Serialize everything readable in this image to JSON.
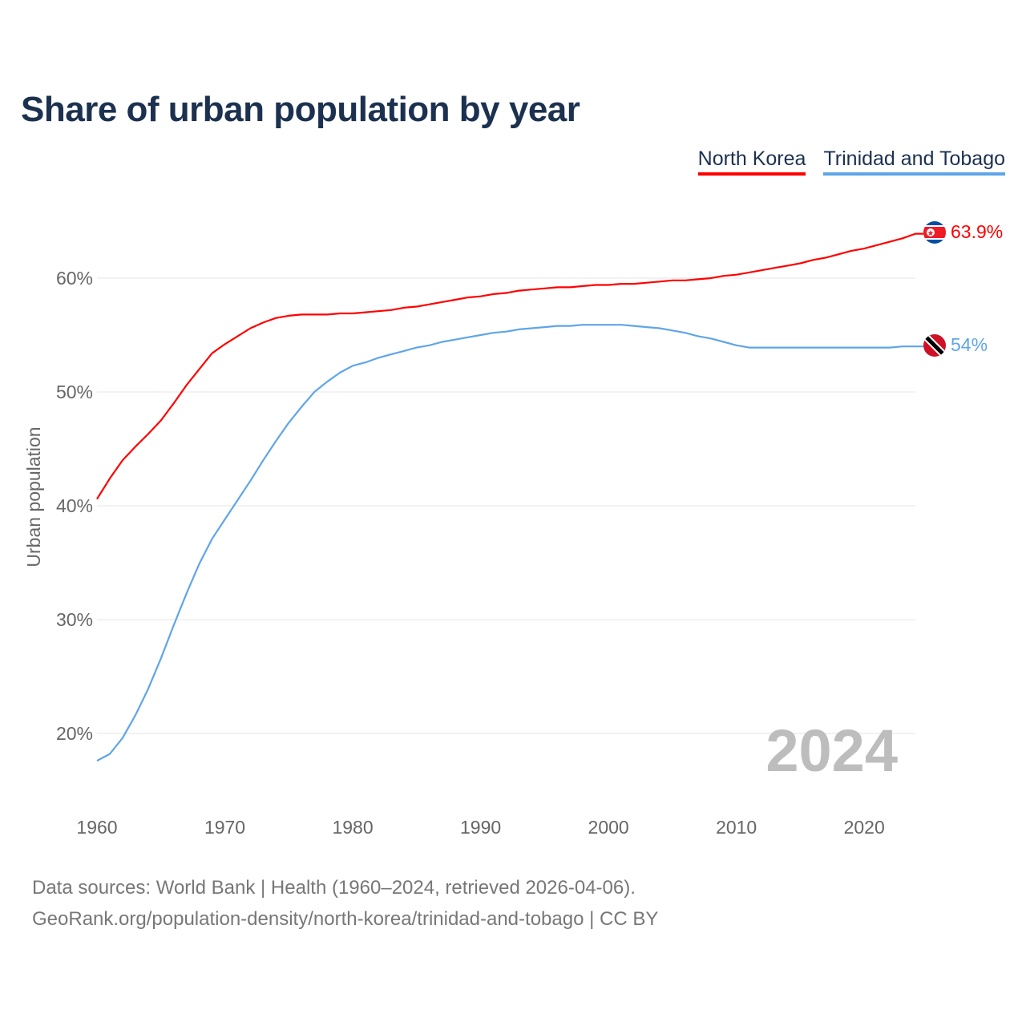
{
  "title": "Share of urban population by year",
  "legend": [
    {
      "label": "North Korea",
      "color": "#ff0000"
    },
    {
      "label": "Trinidad and Tobago",
      "color": "#5fa5e8"
    }
  ],
  "year_watermark": "2024",
  "footer": {
    "line1": "Data sources: World Bank | Health (1960–2024, retrieved 2026-04-06).",
    "line2": "GeoRank.org/population-density/north-korea/trinidad-and-tobago | CC BY"
  },
  "chart_data": {
    "type": "line",
    "title": "Share of urban population by year",
    "xlabel": "",
    "ylabel": "Urban population",
    "xlim": [
      1960,
      2024
    ],
    "ylim": [
      15,
      65
    ],
    "grid": true,
    "legend_position": "top-right",
    "x_ticks": [
      "1960",
      "1970",
      "1980",
      "1990",
      "2000",
      "2010",
      "2020"
    ],
    "y_ticks": [
      {
        "v": 20,
        "label": "20%"
      },
      {
        "v": 30,
        "label": "30%"
      },
      {
        "v": 40,
        "label": "40%"
      },
      {
        "v": 50,
        "label": "50%"
      },
      {
        "v": 60,
        "label": "60%"
      }
    ],
    "x_start": 1960,
    "series": [
      {
        "name": "North Korea",
        "color": "#ff0000",
        "end_label": "63.9%",
        "flag": "north-korea",
        "values": [
          40.6,
          42.4,
          44.0,
          45.2,
          46.3,
          47.5,
          49.0,
          50.6,
          52.0,
          53.4,
          54.2,
          54.9,
          55.6,
          56.1,
          56.5,
          56.7,
          56.8,
          56.8,
          56.8,
          56.9,
          56.9,
          57.0,
          57.1,
          57.2,
          57.4,
          57.5,
          57.7,
          57.9,
          58.1,
          58.3,
          58.4,
          58.6,
          58.7,
          58.9,
          59.0,
          59.1,
          59.2,
          59.2,
          59.3,
          59.4,
          59.4,
          59.5,
          59.5,
          59.6,
          59.7,
          59.8,
          59.8,
          59.9,
          60.0,
          60.2,
          60.3,
          60.5,
          60.7,
          60.9,
          61.1,
          61.3,
          61.6,
          61.8,
          62.1,
          62.4,
          62.6,
          62.9,
          63.2,
          63.5,
          63.9
        ]
      },
      {
        "name": "Trinidad and Tobago",
        "color": "#5fa5e8",
        "end_label": "54%",
        "flag": "trinidad-and-tobago",
        "values": [
          17.6,
          18.2,
          19.6,
          21.6,
          23.9,
          26.6,
          29.5,
          32.3,
          34.9,
          37.1,
          38.8,
          40.5,
          42.2,
          44.0,
          45.7,
          47.3,
          48.7,
          50.0,
          50.9,
          51.7,
          52.3,
          52.6,
          53.0,
          53.3,
          53.6,
          53.9,
          54.1,
          54.4,
          54.6,
          54.8,
          55.0,
          55.2,
          55.3,
          55.5,
          55.6,
          55.7,
          55.8,
          55.8,
          55.9,
          55.9,
          55.9,
          55.9,
          55.8,
          55.7,
          55.6,
          55.4,
          55.2,
          54.9,
          54.7,
          54.4,
          54.1,
          53.9,
          53.9,
          53.9,
          53.9,
          53.9,
          53.9,
          53.9,
          53.9,
          53.9,
          53.9,
          53.9,
          53.9,
          54.0,
          54.0
        ]
      }
    ]
  }
}
